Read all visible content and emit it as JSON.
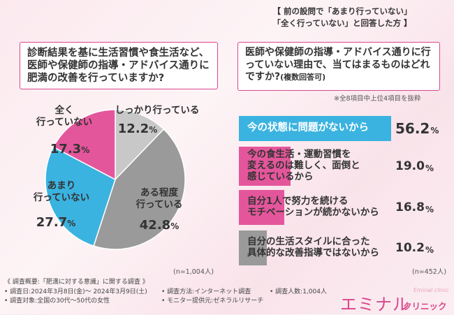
{
  "left": {
    "question": "診断結果を基に生活習慣や食生活など、医師や保健師の指導・アドバイス通りに肥満の改善を行っていますか?",
    "n_note": "(n=1,004人)"
  },
  "right": {
    "subtitle_lines": [
      "【 前の設問で「あまり行っていない」",
      "「全く行っていない」と回答した方 】"
    ],
    "question": "医師や保健師の指導・アドバイス通りに行っていない理由で、当てはまるものはどれですか?",
    "question_suffix": "(複数回答可)",
    "top_note": "※全8項目中上位4項目を抜粋",
    "n_note": "(n=452人)"
  },
  "chart_data": [
    {
      "type": "pie",
      "unit": "%",
      "slices": [
        {
          "label": "しっかり行っている",
          "value": 12.2,
          "color": "#c8c8c8"
        },
        {
          "label": "ある程度\n行っている",
          "value": 42.8,
          "color": "#9a9a9a"
        },
        {
          "label": "あまり\n行っていない",
          "value": 27.7,
          "color": "#3bb3e0"
        },
        {
          "label": "全く\n行っていない",
          "value": 17.3,
          "color": "#e4569b"
        }
      ]
    },
    {
      "type": "bar",
      "orientation": "horizontal",
      "unit": "%",
      "xlim": [
        0,
        56.2
      ],
      "categories": [
        "今の状態に問題がないから",
        "今の食生活・運動習慣を\n変えるのは難しく、面倒と\n感じているから",
        "自分1人で努力を続ける\nモチベーションが続かないから",
        "自分の生活スタイルに合った\n具体的な改善指導ではないから"
      ],
      "values": [
        56.2,
        19.0,
        16.8,
        10.2
      ],
      "colors": [
        "#3bb3e0",
        "#e4569b",
        "#e4569b",
        "#9a9a9a"
      ]
    }
  ],
  "footer": {
    "title": "《 調査概要:「肥満に対する意識」に関する調査 》",
    "period": "• 調査日:2024年3月8日(金)〜 2024年3月9日(土)",
    "method": "• 調査方法:インターネット調査",
    "count": "• 調査人数:1,004人",
    "target": "• 調査対象:全国の30代〜50代の女性",
    "provider": "• モニター提供元:ゼネラルリサーチ"
  },
  "logo": {
    "main": "エミナル",
    "sub": "クリニック",
    "en": "Eminal clinic"
  }
}
